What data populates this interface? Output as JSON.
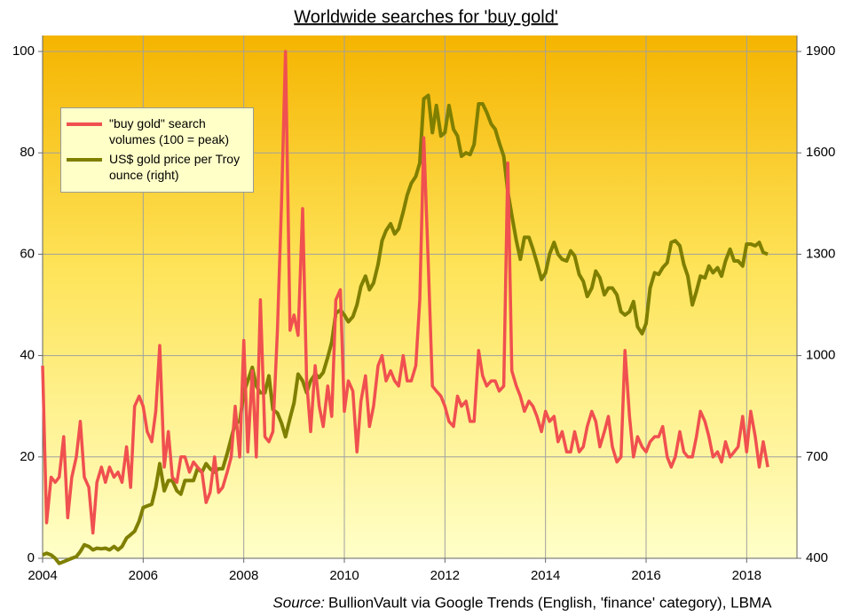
{
  "chart_data": {
    "type": "line",
    "title": "Worldwide searches for 'buy gold'",
    "source_label": "Source:",
    "source": "BullionVault via Google Trends (English, 'finance' category), LBMA",
    "xlim": [
      2004,
      2019
    ],
    "xticks": [
      2004,
      2006,
      2008,
      2010,
      2012,
      2014,
      2016,
      2018
    ],
    "ylim": [
      0,
      100
    ],
    "yticks": [
      0,
      20,
      40,
      60,
      80,
      100
    ],
    "y2lim": [
      400,
      1900
    ],
    "y2ticks": [
      400,
      700,
      1000,
      1300,
      1600,
      1900
    ],
    "grid": true,
    "legend": "upper left",
    "x": [
      2004,
      2004.08,
      2004.17,
      2004.25,
      2004.33,
      2004.42,
      2004.5,
      2004.58,
      2004.67,
      2004.75,
      2004.83,
      2004.92,
      2005,
      2005.08,
      2005.17,
      2005.25,
      2005.33,
      2005.42,
      2005.5,
      2005.58,
      2005.67,
      2005.75,
      2005.83,
      2005.92,
      2006,
      2006.08,
      2006.17,
      2006.25,
      2006.33,
      2006.42,
      2006.5,
      2006.58,
      2006.67,
      2006.75,
      2006.83,
      2006.92,
      2007,
      2007.08,
      2007.17,
      2007.25,
      2007.33,
      2007.42,
      2007.5,
      2007.58,
      2007.67,
      2007.75,
      2007.83,
      2007.92,
      2008,
      2008.08,
      2008.17,
      2008.25,
      2008.33,
      2008.42,
      2008.5,
      2008.58,
      2008.67,
      2008.75,
      2008.83,
      2008.92,
      2009,
      2009.08,
      2009.17,
      2009.25,
      2009.33,
      2009.42,
      2009.5,
      2009.58,
      2009.67,
      2009.75,
      2009.83,
      2009.92,
      2010,
      2010.08,
      2010.17,
      2010.25,
      2010.33,
      2010.42,
      2010.5,
      2010.58,
      2010.67,
      2010.75,
      2010.83,
      2010.92,
      2011,
      2011.08,
      2011.17,
      2011.25,
      2011.33,
      2011.42,
      2011.5,
      2011.58,
      2011.67,
      2011.75,
      2011.83,
      2011.92,
      2012,
      2012.08,
      2012.17,
      2012.25,
      2012.33,
      2012.42,
      2012.5,
      2012.58,
      2012.67,
      2012.75,
      2012.83,
      2012.92,
      2013,
      2013.08,
      2013.17,
      2013.25,
      2013.33,
      2013.42,
      2013.5,
      2013.58,
      2013.67,
      2013.75,
      2013.83,
      2013.92,
      2014,
      2014.08,
      2014.17,
      2014.25,
      2014.33,
      2014.42,
      2014.5,
      2014.58,
      2014.67,
      2014.75,
      2014.83,
      2014.92,
      2015,
      2015.08,
      2015.17,
      2015.25,
      2015.33,
      2015.42,
      2015.5,
      2015.58,
      2015.67,
      2015.75,
      2015.83,
      2015.92,
      2016,
      2016.08,
      2016.17,
      2016.25,
      2016.33,
      2016.42,
      2016.5,
      2016.58,
      2016.67,
      2016.75,
      2016.83,
      2016.92,
      2017,
      2017.08,
      2017.17,
      2017.25,
      2017.33,
      2017.42,
      2017.5,
      2017.58,
      2017.67,
      2017.75,
      2017.83,
      2017.92,
      2018,
      2018.08,
      2018.17,
      2018.25,
      2018.33,
      2018.42
    ],
    "series": [
      {
        "name": "\"buy gold\" search volumes (100 = peak)",
        "color": "#f0504f",
        "values": [
          38,
          7,
          16,
          15,
          16,
          24,
          8,
          16,
          20,
          27,
          16,
          14,
          5,
          15,
          18,
          15,
          18,
          16,
          17,
          15,
          22,
          14,
          30,
          32,
          30,
          25,
          23,
          29,
          42,
          18,
          25,
          16,
          15,
          20,
          20,
          17,
          19,
          18,
          17,
          11,
          13,
          20,
          13,
          14,
          17,
          20,
          30,
          20,
          43,
          21,
          37,
          20,
          51,
          24,
          23,
          25,
          45,
          70,
          100,
          45,
          48,
          44,
          69,
          35,
          25,
          38,
          30,
          26,
          34,
          28,
          51,
          53,
          29,
          35,
          33,
          21,
          31,
          36,
          26,
          30,
          38,
          40,
          35,
          37,
          35,
          34,
          40,
          35,
          35,
          38,
          51,
          83,
          58,
          34,
          33,
          32,
          30,
          27,
          26,
          32,
          30,
          31,
          27,
          27,
          41,
          36,
          34,
          35,
          35,
          33,
          34,
          78,
          37,
          34,
          32,
          29,
          31,
          30,
          28,
          25,
          29,
          27,
          28,
          23,
          25,
          21,
          21,
          25,
          21,
          22,
          26,
          29,
          27,
          22,
          25,
          28,
          22,
          19,
          20,
          41,
          28,
          20,
          24,
          22,
          21,
          23,
          24,
          24,
          26,
          20,
          18,
          20,
          25,
          21,
          20,
          20,
          24,
          29,
          27,
          24,
          20,
          21,
          19,
          23,
          20,
          21,
          22,
          28,
          21,
          29,
          24,
          18,
          23,
          18
        ]
      },
      {
        "name": "US$ gold price per Troy ounce (right)",
        "color": "#7f7f00",
        "axis": "y2",
        "values": [
          410,
          415,
          410,
          400,
          385,
          390,
          395,
          400,
          405,
          420,
          440,
          435,
          425,
          430,
          428,
          430,
          425,
          435,
          425,
          435,
          460,
          470,
          480,
          510,
          550,
          555,
          560,
          610,
          680,
          600,
          630,
          630,
          600,
          590,
          630,
          630,
          630,
          665,
          655,
          680,
          665,
          655,
          665,
          665,
          710,
          755,
          800,
          805,
          890,
          925,
          965,
          910,
          890,
          890,
          940,
          840,
          830,
          800,
          760,
          815,
          860,
          945,
          925,
          890,
          925,
          945,
          935,
          950,
          995,
          1040,
          1125,
          1135,
          1120,
          1100,
          1115,
          1150,
          1205,
          1235,
          1195,
          1215,
          1270,
          1340,
          1370,
          1390,
          1360,
          1375,
          1425,
          1475,
          1510,
          1530,
          1570,
          1760,
          1770,
          1660,
          1740,
          1650,
          1660,
          1740,
          1670,
          1650,
          1590,
          1600,
          1595,
          1625,
          1745,
          1745,
          1720,
          1685,
          1670,
          1630,
          1590,
          1485,
          1415,
          1340,
          1285,
          1350,
          1350,
          1315,
          1275,
          1225,
          1245,
          1300,
          1335,
          1300,
          1285,
          1280,
          1310,
          1295,
          1240,
          1220,
          1175,
          1200,
          1250,
          1230,
          1180,
          1200,
          1200,
          1180,
          1130,
          1120,
          1130,
          1160,
          1085,
          1065,
          1095,
          1200,
          1245,
          1240,
          1260,
          1275,
          1335,
          1340,
          1325,
          1270,
          1235,
          1150,
          1190,
          1235,
          1230,
          1265,
          1245,
          1260,
          1235,
          1280,
          1315,
          1280,
          1280,
          1265,
          1330,
          1330,
          1325,
          1335,
          1305,
          1300
        ]
      }
    ]
  }
}
